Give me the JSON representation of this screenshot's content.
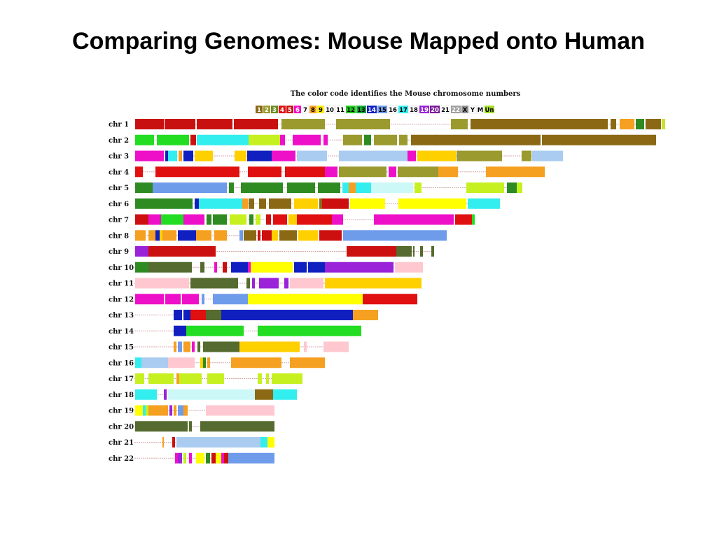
{
  "slide": {
    "title": "Comparing Genomes: Mouse Mapped onto Human"
  },
  "legend": {
    "caption": "The color code identifies the Mouse chromosome numbers",
    "items": [
      {
        "label": "1",
        "color": "#8B6914",
        "text": "#ffffff"
      },
      {
        "label": "2",
        "color": "#9A9A2E",
        "text": "#ffffff"
      },
      {
        "label": "3",
        "color": "#6B8E23",
        "text": "#ffffff"
      },
      {
        "label": "4",
        "color": "#E01010",
        "text": "#ffffff"
      },
      {
        "label": "5",
        "color": "#CC1010",
        "text": "#ffffff"
      },
      {
        "label": "6",
        "color": "#EE10C8",
        "text": "#ffffff"
      },
      {
        "label": "7",
        "color": "#FFFFFF",
        "text": "#000000"
      },
      {
        "label": "8",
        "color": "#F5A020",
        "text": "#000000"
      },
      {
        "label": "9",
        "color": "#FFEE00",
        "text": "#000000"
      },
      {
        "label": "10",
        "color": "#FFFFFF",
        "text": "#000000"
      },
      {
        "label": "11",
        "color": "#FFFFFF",
        "text": "#000000"
      },
      {
        "label": "12",
        "color": "#22CC22",
        "text": "#000000"
      },
      {
        "label": "13",
        "color": "#11AA33",
        "text": "#000000"
      },
      {
        "label": "14",
        "color": "#1020C0",
        "text": "#ffffff"
      },
      {
        "label": "15",
        "color": "#6F9BEB",
        "text": "#000000"
      },
      {
        "label": "16",
        "color": "#FFFFFF",
        "text": "#000000"
      },
      {
        "label": "17",
        "color": "#33EEEE",
        "text": "#000000"
      },
      {
        "label": "18",
        "color": "#FFFFFF",
        "text": "#000000"
      },
      {
        "label": "19",
        "color": "#9A22D8",
        "text": "#ffffff"
      },
      {
        "label": "20",
        "color": "#7A1A9A",
        "text": "#ffffff"
      },
      {
        "label": "21",
        "color": "#FFFFFF",
        "text": "#000000"
      },
      {
        "label": "22",
        "color": "#A0A0A0",
        "text": "#ffffff"
      },
      {
        "label": "X",
        "color": "#909090",
        "text": "#000000"
      },
      {
        "label": "Y",
        "color": "#FFFFFF",
        "text": "#000000"
      },
      {
        "label": "M",
        "color": "#FFFFFF",
        "text": "#000000"
      },
      {
        "label": "Un",
        "color": "#A6DC28",
        "text": "#000000"
      }
    ]
  },
  "chromosomes": [
    {
      "label": "chr 1",
      "segments": [
        [
          "#C81010",
          1,
          42
        ],
        [
          "#C81010",
          43,
          87
        ],
        [
          "#C81010",
          89,
          140
        ],
        [
          "#C81010",
          142,
          205
        ],
        [
          "#9A9A2E",
          210,
          272
        ],
        [
          "#9A9A2E",
          288,
          365
        ],
        [
          "#9A9A2E",
          452,
          476
        ],
        [
          "#8B6914",
          480,
          676
        ],
        [
          "#8B6914",
          680,
          688
        ],
        [
          "#F5A020",
          693,
          714
        ],
        [
          "#2E8B22",
          716,
          728
        ],
        [
          "#8B6914",
          730,
          752
        ],
        [
          "#C8E030",
          753,
          758
        ]
      ]
    },
    {
      "label": "chr 2",
      "segments": [
        [
          "#22DD22",
          1,
          28
        ],
        [
          "#22DD22",
          32,
          78
        ],
        [
          "#CC1010",
          80,
          88
        ],
        [
          "#33EEEE",
          89,
          163
        ],
        [
          "#C6F020",
          163,
          208
        ],
        [
          "#EE10C8",
          208,
          215
        ],
        [
          "#EE10C8",
          226,
          266
        ],
        [
          "#EE10C8",
          270,
          276
        ],
        [
          "#9A9A2E",
          298,
          325
        ],
        [
          "#2E8B22",
          328,
          338
        ],
        [
          "#9A9A2E",
          342,
          375
        ],
        [
          "#9A9A2E",
          378,
          390
        ],
        [
          "#8B6914",
          395,
          432
        ],
        [
          "#8B6914",
          430,
          580
        ],
        [
          "#8B6914",
          582,
          745
        ]
      ]
    },
    {
      "label": "chr 3",
      "segments": [
        [
          "#EE10C8",
          1,
          42
        ],
        [
          "#1020C0",
          44,
          48
        ],
        [
          "#33EEEE",
          48,
          61
        ],
        [
          "#F5A020",
          63,
          68
        ],
        [
          "#1020C0",
          70,
          84
        ],
        [
          "#FFD000",
          86,
          112
        ],
        [
          "#FFD000",
          143,
          160
        ],
        [
          "#1020C0",
          161,
          196
        ],
        [
          "#EE10C8",
          196,
          230
        ],
        [
          "#AACCF0",
          232,
          275
        ],
        [
          "#AACCF0",
          292,
          390
        ],
        [
          "#EE10C8",
          390,
          402
        ],
        [
          "#FFD000",
          404,
          459
        ],
        [
          "#9A9A2E",
          460,
          525
        ],
        [
          "#9A9A2E",
          553,
          567
        ],
        [
          "#AACCF0",
          568,
          612
        ]
      ]
    },
    {
      "label": "chr 4",
      "segments": [
        [
          "#E01010",
          1,
          12
        ],
        [
          "#E01010",
          30,
          150
        ],
        [
          "#E01010",
          162,
          210
        ],
        [
          "#E01010",
          215,
          272
        ],
        [
          "#EE10C8",
          272,
          290
        ],
        [
          "#9A9A2E",
          292,
          360
        ],
        [
          "#EE10C8",
          363,
          374
        ],
        [
          "#9A9A2E",
          376,
          434
        ],
        [
          "#F5A020",
          434,
          462
        ],
        [
          "#F5A020",
          502,
          586
        ]
      ]
    },
    {
      "label": "chr 5",
      "segments": [
        [
          "#2E8B22",
          1,
          26
        ],
        [
          "#6F9BEB",
          26,
          104
        ],
        [
          "#6F9BEB",
          104,
          132
        ],
        [
          "#2E8B22",
          135,
          142
        ],
        [
          "#2E8B22",
          152,
          212
        ],
        [
          "#2E8B22",
          218,
          258
        ],
        [
          "#2E8B22",
          262,
          294
        ],
        [
          "#33EEEE",
          297,
          306
        ],
        [
          "#F5A020",
          306,
          316
        ],
        [
          "#33EEEE",
          316,
          338
        ],
        [
          "#CCF8F8",
          338,
          398
        ],
        [
          "#C6F020",
          400,
          410
        ],
        [
          "#C6F020",
          474,
          528
        ],
        [
          "#2E8B22",
          532,
          546
        ],
        [
          "#C6F020",
          546,
          554
        ]
      ]
    },
    {
      "label": "chr 6",
      "segments": [
        [
          "#2E8B22",
          1,
          83
        ],
        [
          "#1020C0",
          86,
          92
        ],
        [
          "#33EEEE",
          92,
          148
        ],
        [
          "#33EEEE",
          148,
          154
        ],
        [
          "#F5A020",
          154,
          162
        ],
        [
          "#8B6914",
          163,
          171
        ],
        [
          "#8B6914",
          178,
          188
        ],
        [
          "#8B6914",
          192,
          224
        ],
        [
          "#FFD000",
          228,
          262
        ],
        [
          "#8B6914",
          264,
          268
        ],
        [
          "#CC1010",
          268,
          306
        ],
        [
          "#FFFF00",
          308,
          358
        ],
        [
          "#FFFF00",
          377,
          474
        ],
        [
          "#33EEEE",
          476,
          522
        ]
      ]
    },
    {
      "label": "chr 7",
      "segments": [
        [
          "#CC1010",
          1,
          20
        ],
        [
          "#EE10C8",
          20,
          38
        ],
        [
          "#22DD22",
          38,
          70
        ],
        [
          "#EE10C8",
          70,
          100
        ],
        [
          "#2E8B22",
          103,
          110
        ],
        [
          "#2E8B22",
          112,
          132
        ],
        [
          "#C6F020",
          136,
          160
        ],
        [
          "#2E8B22",
          164,
          170
        ],
        [
          "#C6F020",
          173,
          180
        ],
        [
          "#CC1010",
          188,
          195
        ],
        [
          "#E01010",
          198,
          218
        ],
        [
          "#FFD000",
          220,
          232
        ],
        [
          "#E01010",
          232,
          282
        ],
        [
          "#EE10C8",
          282,
          298
        ],
        [
          "#EE10C8",
          342,
          456
        ],
        [
          "#E01010",
          458,
          482
        ],
        [
          "#22DD22",
          482,
          486
        ]
      ]
    },
    {
      "label": "chr 8",
      "segments": [
        [
          "#F5A020",
          1,
          16
        ],
        [
          "#F5A020",
          20,
          30
        ],
        [
          "#1020C0",
          30,
          36
        ],
        [
          "#FFD000",
          36,
          40
        ],
        [
          "#F5A020",
          40,
          60
        ],
        [
          "#1020C0",
          62,
          88
        ],
        [
          "#F5A020",
          88,
          110
        ],
        [
          "#F5A020",
          114,
          132
        ],
        [
          "#6F9BEB",
          150,
          155
        ],
        [
          "#8B6914",
          156,
          174
        ],
        [
          "#CC1010",
          176,
          180
        ],
        [
          "#CC1010",
          182,
          196
        ],
        [
          "#FFD000",
          196,
          205
        ],
        [
          "#8B6914",
          207,
          232
        ],
        [
          "#FFD000",
          234,
          262
        ],
        [
          "#CC1010",
          264,
          296
        ],
        [
          "#6F9BEB",
          298,
          446
        ]
      ]
    },
    {
      "label": "chr 9",
      "segments": [
        [
          "#9A22D8",
          1,
          20
        ],
        [
          "#CC1010",
          20,
          116
        ],
        [
          "#CC1010",
          303,
          374
        ],
        [
          "#556B2F",
          374,
          396
        ],
        [
          "#556B2F",
          398,
          400
        ],
        [
          "#556B2F",
          408,
          412
        ],
        [
          "#556B2F",
          424,
          428
        ]
      ]
    },
    {
      "label": "chr 10",
      "segments": [
        [
          "#2E8B22",
          1,
          20
        ],
        [
          "#556B2F",
          20,
          82
        ],
        [
          "#556B2F",
          94,
          100
        ],
        [
          "#EE10C8",
          114,
          118
        ],
        [
          "#CC1010",
          126,
          132
        ],
        [
          "#1020C0",
          138,
          142
        ],
        [
          "#1020C0",
          142,
          162
        ],
        [
          "#EE10C8",
          162,
          166
        ],
        [
          "#FFFF00",
          166,
          226
        ],
        [
          "#1020C0",
          228,
          246
        ],
        [
          "#1020C0",
          248,
          272
        ],
        [
          "#9A22D8",
          272,
          370
        ],
        [
          "#FFC8D0",
          372,
          412
        ]
      ]
    },
    {
      "label": "chr 11",
      "segments": [
        [
          "#FFC8D0",
          1,
          78
        ],
        [
          "#556B2F",
          80,
          148
        ],
        [
          "#556B2F",
          160,
          165
        ],
        [
          "#9A22D8",
          168,
          172
        ],
        [
          "#9A22D8",
          178,
          206
        ],
        [
          "#9A22D8",
          214,
          220
        ],
        [
          "#FFC8D0",
          222,
          270
        ],
        [
          "#FFD000",
          272,
          306
        ],
        [
          "#FFD000",
          306,
          366
        ],
        [
          "#FFD000",
          366,
          410
        ]
      ]
    },
    {
      "label": "chr 12",
      "segments": [
        [
          "#EE10C8",
          1,
          42
        ],
        [
          "#EE10C8",
          44,
          66
        ],
        [
          "#EE10C8",
          68,
          92
        ],
        [
          "#6F9BEB",
          96,
          100
        ],
        [
          "#6F9BEB",
          112,
          162
        ],
        [
          "#FFFF00",
          162,
          326
        ],
        [
          "#E01010",
          326,
          404
        ]
      ]
    },
    {
      "label": "chr 13",
      "segments": [
        [
          "#1020C0",
          56,
          68
        ],
        [
          "#1020C0",
          70,
          80
        ],
        [
          "#E01010",
          80,
          102
        ],
        [
          "#556B2F",
          102,
          124
        ],
        [
          "#1020C0",
          124,
          162
        ],
        [
          "#1020C0",
          162,
          270
        ],
        [
          "#1020C0",
          270,
          312
        ],
        [
          "#F5A020",
          312,
          348
        ]
      ]
    },
    {
      "label": "chr 14",
      "segments": [
        [
          "#1020C0",
          56,
          74
        ],
        [
          "#22DD22",
          74,
          156
        ],
        [
          "#22DD22",
          176,
          324
        ]
      ]
    },
    {
      "label": "chr 15",
      "segments": [
        [
          "#F5A020",
          56,
          60
        ],
        [
          "#6F9BEB",
          62,
          68
        ],
        [
          "#F5A020",
          70,
          80
        ],
        [
          "#EE10C8",
          82,
          86
        ],
        [
          "#556B2F",
          90,
          94
        ],
        [
          "#556B2F",
          98,
          150
        ],
        [
          "#FFD000",
          150,
          236
        ],
        [
          "#FFC8D0",
          242,
          246
        ],
        [
          "#FFC8D0",
          270,
          306
        ]
      ]
    },
    {
      "label": "chr 16",
      "segments": [
        [
          "#33EEEE",
          1,
          10
        ],
        [
          "#AACCF0",
          10,
          48
        ],
        [
          "#FFC8D0",
          48,
          86
        ],
        [
          "#FFD000",
          94,
          98
        ],
        [
          "#2E8B22",
          98,
          102
        ],
        [
          "#F5A020",
          104,
          108
        ],
        [
          "#F5A020",
          138,
          210
        ],
        [
          "#F5A020",
          222,
          272
        ]
      ]
    },
    {
      "label": "chr 17",
      "segments": [
        [
          "#C6F020",
          1,
          14
        ],
        [
          "#C6F020",
          20,
          56
        ],
        [
          "#F5A020",
          60,
          64
        ],
        [
          "#C6F020",
          64,
          96
        ],
        [
          "#C6F020",
          104,
          128
        ],
        [
          "#C6F020",
          176,
          182
        ],
        [
          "#C6F020",
          188,
          192
        ],
        [
          "#C6F020",
          196,
          240
        ]
      ]
    },
    {
      "label": "chr 18",
      "segments": [
        [
          "#33EEEE",
          1,
          32
        ],
        [
          "#9A22D8",
          42,
          46
        ],
        [
          "#CCF8F8",
          48,
          172
        ],
        [
          "#8B6914",
          172,
          198
        ],
        [
          "#33EEEE",
          198,
          232
        ]
      ]
    },
    {
      "label": "chr 19",
      "segments": [
        [
          "#FFFF00",
          1,
          12
        ],
        [
          "#33EEEE",
          12,
          16
        ],
        [
          "#C6F020",
          16,
          20
        ],
        [
          "#F5A020",
          20,
          48
        ],
        [
          "#9A22D8",
          50,
          54
        ],
        [
          "#F5A020",
          56,
          60
        ],
        [
          "#6F9BEB",
          62,
          70
        ],
        [
          "#F5A020",
          70,
          76
        ],
        [
          "#FFC8D0",
          102,
          200
        ]
      ]
    },
    {
      "label": "chr 20",
      "segments": [
        [
          "#556B2F",
          1,
          76
        ],
        [
          "#556B2F",
          78,
          82
        ],
        [
          "#556B2F",
          94,
          200
        ]
      ]
    },
    {
      "label": "chr 21",
      "segments": [
        [
          "#F5A020",
          40,
          42
        ],
        [
          "#CC1010",
          54,
          58
        ],
        [
          "#AACCF0",
          60,
          180
        ],
        [
          "#33EEEE",
          180,
          190
        ],
        [
          "#FFFF00",
          190,
          200
        ]
      ]
    },
    {
      "label": "chr 22",
      "segments": [
        [
          "#EE10C8",
          58,
          62
        ],
        [
          "#9A22D8",
          62,
          68
        ],
        [
          "#C6F020",
          70,
          74
        ],
        [
          "#EE10C8",
          78,
          82
        ],
        [
          "#FFFF00",
          88,
          100
        ],
        [
          "#2E8B22",
          102,
          108
        ],
        [
          "#CC1010",
          110,
          116
        ],
        [
          "#FFFF00",
          116,
          124
        ],
        [
          "#EE10C8",
          124,
          128
        ],
        [
          "#CC1010",
          128,
          134
        ],
        [
          "#6F9BEB",
          134,
          200
        ]
      ]
    }
  ]
}
